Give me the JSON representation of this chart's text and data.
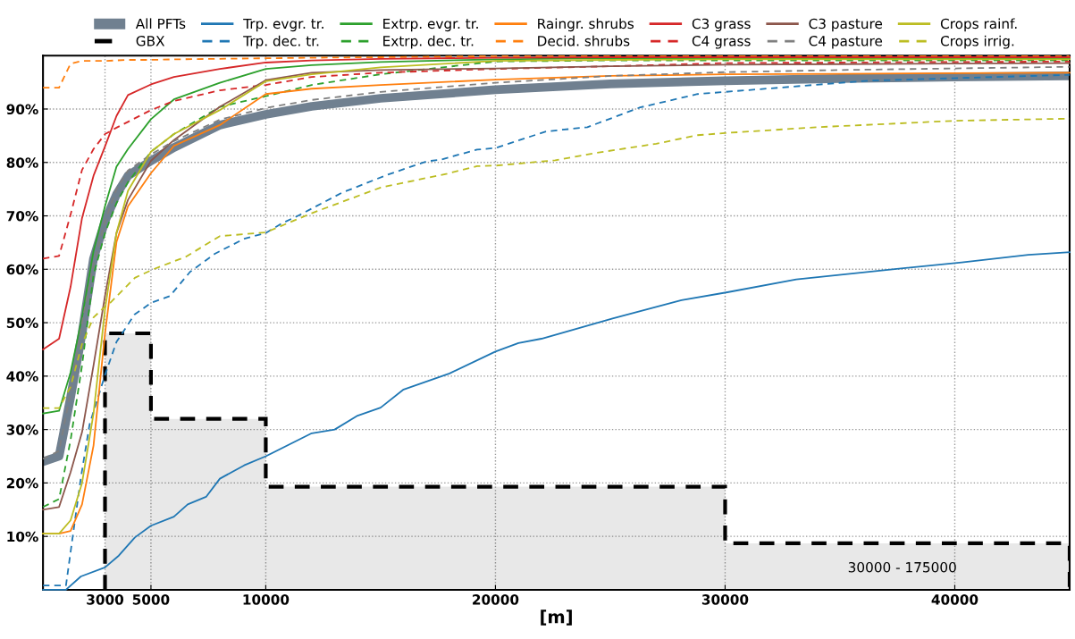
{
  "chart_data": {
    "type": "line",
    "xlabel": "[m]",
    "xlim": [
      300,
      45000
    ],
    "ylim": [
      0,
      100
    ],
    "xticks": [
      3000,
      5000,
      10000,
      20000,
      30000,
      40000
    ],
    "yticks": [
      {
        "value": 10,
        "label": "10%"
      },
      {
        "value": 20,
        "label": "20%"
      },
      {
        "value": 30,
        "label": "30%"
      },
      {
        "value": 40,
        "label": "40%"
      },
      {
        "value": 50,
        "label": "50%"
      },
      {
        "value": 60,
        "label": "60%"
      },
      {
        "value": 70,
        "label": "70%"
      },
      {
        "value": 80,
        "label": "80%"
      },
      {
        "value": 90,
        "label": "90%"
      }
    ],
    "grid": true,
    "legend": "top",
    "marker": "none",
    "x": [
      300,
      1000,
      1500,
      2000,
      2500,
      3000,
      3500,
      4000,
      5000,
      6000,
      8000,
      10000,
      12000,
      15000,
      20000,
      25000,
      30000,
      35000,
      40000,
      45000
    ],
    "annotations": [
      "30000 - 175000"
    ],
    "series": [
      {
        "name": "All PFTs",
        "color": "#708090",
        "values": [
          24,
          25,
          36,
          48,
          62,
          69,
          74,
          77.5,
          80.3,
          82.8,
          87,
          89,
          90.5,
          92,
          93.6,
          94.7,
          95.3,
          95.7,
          96,
          96.2
        ]
      },
      {
        "name": "GBX",
        "type": "histogram",
        "color": "#000000",
        "line_style": "dashed",
        "bins": [
          3000,
          5000,
          10000,
          30000,
          45000
        ],
        "values": [
          48,
          32,
          19.3,
          8.7
        ]
      },
      {
        "name": "Trp. evgr. tr.",
        "color": "#1f77b4",
        "x": [
          300,
          1300,
          1950,
          3000,
          3600,
          4300,
          5000,
          6000,
          6600,
          7400,
          8000,
          9060,
          10000,
          12000,
          13000,
          14000,
          15000,
          16000,
          18000,
          20000,
          21000,
          22000,
          25100,
          28100,
          30100,
          33100,
          37100,
          40300,
          43200,
          45000
        ],
        "values": [
          0,
          0,
          2.5,
          4.2,
          6.4,
          9.8,
          12,
          13.7,
          16,
          17.4,
          20.8,
          23.3,
          25,
          29.3,
          30,
          32.6,
          34.1,
          37.5,
          40.5,
          44.6,
          46.2,
          47,
          50.8,
          54.2,
          55.7,
          58.1,
          59.9,
          61.3,
          62.7,
          63.2
        ]
      },
      {
        "name": "Trp. dec. tr.",
        "color": "#1f77b4",
        "line_style": "dashed",
        "x": [
          300,
          1300,
          1550,
          1950,
          2330,
          3000,
          3500,
          4280,
          5000,
          5830,
          6700,
          7780,
          9060,
          10000,
          10700,
          11400,
          13300,
          15300,
          17000,
          17600,
          19200,
          20000,
          22200,
          24000,
          24500,
          26300,
          28800,
          30000,
          36200,
          45000
        ],
        "values": [
          0.8,
          0.8,
          8.6,
          21,
          31,
          40.2,
          46.4,
          51.5,
          53.7,
          55,
          59.5,
          62.9,
          65.7,
          66.8,
          68.6,
          70,
          74.3,
          77.7,
          80.2,
          80.5,
          82.4,
          82.7,
          85.8,
          86.6,
          87.4,
          90.3,
          92.8,
          93.2,
          95.3,
          96.4
        ]
      },
      {
        "name": "Extrp. evgr. tr.",
        "color": "#2ca02c",
        "values": [
          33,
          33.5,
          40.7,
          51,
          63.4,
          71.8,
          79.2,
          82.5,
          88.1,
          91.8,
          94.9,
          97.5,
          98.2,
          98.8,
          99.3,
          99.5,
          99.5,
          99.5,
          99.5,
          99.5
        ]
      },
      {
        "name": "Extrp. dec. tr.",
        "color": "#2ca02c",
        "line_style": "dashed",
        "values": [
          15.5,
          17,
          28,
          42,
          58.9,
          66.8,
          72.4,
          76.3,
          82,
          85.3,
          90.4,
          92.4,
          94.5,
          96.5,
          98.9,
          99.1,
          99.1,
          99.1,
          99.1,
          99.1
        ]
      },
      {
        "name": "Raingr. shrubs",
        "color": "#ff7f0e",
        "values": [
          10.5,
          10.5,
          11,
          16,
          27,
          48,
          65.1,
          71.8,
          78,
          83.1,
          87,
          92.8,
          93.8,
          94.5,
          95.5,
          96.2,
          96.5,
          96.6,
          96.7,
          96.8
        ]
      },
      {
        "name": "Decid. shrubs",
        "color": "#ff7f0e",
        "line_style": "dashed",
        "values": [
          94,
          94,
          98.5,
          99,
          99,
          99,
          99.1,
          99.2,
          99.2,
          99.3,
          99.4,
          99.5,
          99.6,
          99.7,
          99.9,
          99.9,
          99.9,
          99.9,
          99.9,
          99.9
        ]
      },
      {
        "name": "C3 grass",
        "color": "#d62728",
        "values": [
          45,
          47,
          56.7,
          69.6,
          77.5,
          83,
          88.7,
          92.6,
          94.6,
          96,
          97.5,
          98.7,
          99.1,
          99.4,
          99.6,
          99.7,
          99.7,
          99.7,
          99.7,
          99.7
        ]
      },
      {
        "name": "C4 grass",
        "color": "#d62728",
        "line_style": "dashed",
        "values": [
          62,
          62.5,
          70.2,
          78.6,
          82.5,
          85.3,
          86.5,
          87.6,
          89.8,
          91.5,
          93.5,
          94.5,
          96,
          96.8,
          97.5,
          98,
          98.6,
          98.7,
          98.8,
          98.9
        ]
      },
      {
        "name": "C3 pasture",
        "color": "#8c564b",
        "values": [
          15,
          15.5,
          22,
          29.5,
          42,
          55,
          66.8,
          73,
          80.3,
          84.2,
          90.4,
          95.4,
          96.8,
          97.3,
          97.6,
          98.0,
          98.3,
          98.4,
          98.5,
          98.6
        ]
      },
      {
        "name": "C4 pasture",
        "color": "#7f7f7f",
        "line_style": "dashed",
        "values": [
          24.5,
          26,
          37,
          50,
          61,
          69,
          75,
          78.5,
          81.5,
          84,
          88,
          90.2,
          91.7,
          93.2,
          94.9,
          96.2,
          96.9,
          97.3,
          97.6,
          97.9
        ]
      },
      {
        "name": "Crops rainf.",
        "color": "#bcbd22",
        "values": [
          10.5,
          10.5,
          13,
          20,
          33,
          52.5,
          66.8,
          74.7,
          82,
          85.3,
          89.8,
          95.2,
          96.5,
          97.8,
          99.0,
          99.2,
          99.3,
          99.3,
          99.3,
          99.3
        ]
      },
      {
        "name": "Crops irrig.",
        "color": "#bcbd22",
        "line_style": "dashed",
        "x": [
          300,
          1000,
          1500,
          2000,
          2500,
          3000,
          3200,
          4300,
          5100,
          6500,
          8000,
          10000,
          12000,
          15000,
          17900,
          19200,
          20000,
          22600,
          24400,
          27000,
          28800,
          30000,
          34000,
          40000,
          45000
        ],
        "values": [
          34,
          34,
          38,
          46,
          51,
          53,
          53.6,
          58.4,
          60,
          62.3,
          66.2,
          66.9,
          70.5,
          75.3,
          77.9,
          79.3,
          79.4,
          80.4,
          81.8,
          83.5,
          85.1,
          85.5,
          86.6,
          87.8,
          88.2
        ]
      }
    ]
  }
}
